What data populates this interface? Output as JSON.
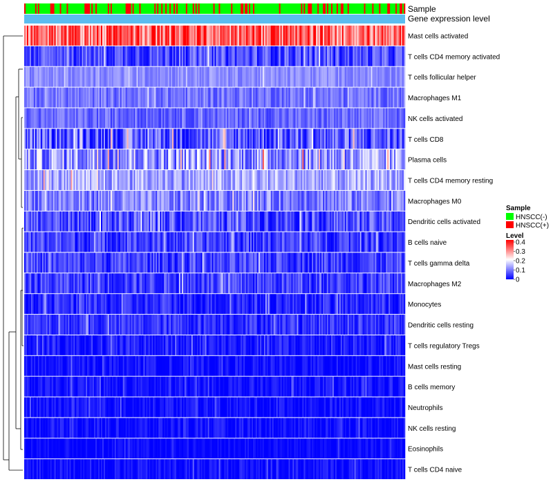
{
  "chart_data": {
    "type": "heatmap",
    "title": "",
    "n_samples": 278,
    "rows": [
      {
        "label": "Mast cells activated",
        "mean": 0.32,
        "spread": 0.1
      },
      {
        "label": "T cells CD4 memory activated",
        "mean": 0.06,
        "spread": 0.06
      },
      {
        "label": "T cells follicular helper",
        "mean": 0.11,
        "spread": 0.03
      },
      {
        "label": "Macrophages M1",
        "mean": 0.09,
        "spread": 0.04
      },
      {
        "label": "NK cells activated",
        "mean": 0.08,
        "spread": 0.04
      },
      {
        "label": "T cells CD8",
        "mean": 0.07,
        "spread": 0.08
      },
      {
        "label": "Plasma cells",
        "mean": 0.12,
        "spread": 0.09
      },
      {
        "label": "T cells CD4 memory resting",
        "mean": 0.13,
        "spread": 0.06
      },
      {
        "label": "Macrophages M0",
        "mean": 0.1,
        "spread": 0.06
      },
      {
        "label": "Dendritic cells activated",
        "mean": 0.06,
        "spread": 0.06
      },
      {
        "label": "B cells naive",
        "mean": 0.05,
        "spread": 0.05
      },
      {
        "label": "T cells gamma delta",
        "mean": 0.05,
        "spread": 0.05
      },
      {
        "label": "Macrophages M2",
        "mean": 0.05,
        "spread": 0.05
      },
      {
        "label": "Monocytes",
        "mean": 0.03,
        "spread": 0.04
      },
      {
        "label": "Dendritic cells resting",
        "mean": 0.04,
        "spread": 0.04
      },
      {
        "label": "T cells regulatory  Tregs",
        "mean": 0.02,
        "spread": 0.04
      },
      {
        "label": "Mast cells resting",
        "mean": 0.01,
        "spread": 0.03
      },
      {
        "label": "B cells memory",
        "mean": 0.01,
        "spread": 0.03
      },
      {
        "label": "Neutrophils",
        "mean": 0.01,
        "spread": 0.03
      },
      {
        "label": "NK cells resting",
        "mean": 0.01,
        "spread": 0.03
      },
      {
        "label": "Eosinophils",
        "mean": 0.005,
        "spread": 0.02
      },
      {
        "label": "T cells CD4 naive",
        "mean": 0.01,
        "spread": 0.03
      }
    ],
    "annotations": {
      "sample_label": "Sample",
      "level_label": "Gene expression level",
      "groups": [
        "HNSCC(-)",
        "HNSCC(+)"
      ],
      "positive_fraction": 0.22
    },
    "color_scale": {
      "min": 0,
      "mid": 0.2,
      "max": 0.4,
      "low": "#0000FF",
      "mid_color": "#FFFFFF",
      "high": "#FF0000"
    },
    "legend": {
      "sample_title": "Sample",
      "sample_items": [
        {
          "label": "HNSCC(-)",
          "color": "#00FF00"
        },
        {
          "label": "HNSCC(+)",
          "color": "#FF0000"
        }
      ],
      "level_title": "Level",
      "level_ticks": [
        "0.4",
        "0.3",
        "0.2",
        "0.1",
        "0"
      ],
      "placement": "right"
    }
  }
}
